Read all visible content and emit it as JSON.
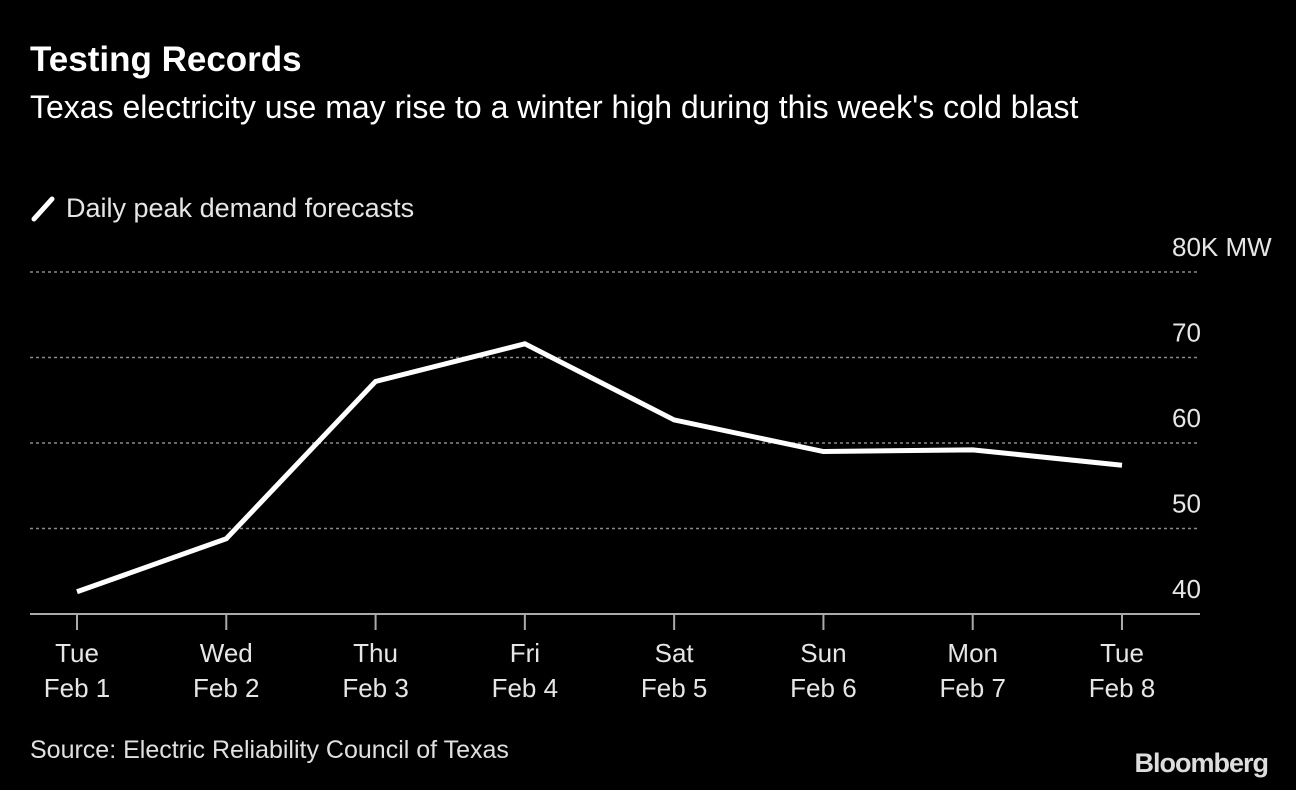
{
  "chart_data": {
    "type": "line",
    "title": "Testing Records",
    "subtitle": "Texas electricity use may rise to a winter high during this week's cold blast",
    "legend": [
      "Daily peak demand forecasts"
    ],
    "legend_placement": "top-left",
    "categories": [
      [
        "Tue",
        "Feb 1"
      ],
      [
        "Wed",
        "Feb 2"
      ],
      [
        "Thu",
        "Feb 3"
      ],
      [
        "Fri",
        "Feb 4"
      ],
      [
        "Sat",
        "Feb 5"
      ],
      [
        "Sun",
        "Feb 6"
      ],
      [
        "Mon",
        "Feb 7"
      ],
      [
        "Tue",
        "Feb 8"
      ]
    ],
    "series": [
      {
        "name": "Daily peak demand forecasts",
        "values": [
          42.6,
          48.8,
          67.2,
          71.6,
          62.7,
          59.0,
          59.2,
          57.4
        ]
      }
    ],
    "ylim": [
      40,
      80
    ],
    "yticks": [
      40,
      50,
      60,
      70,
      80
    ],
    "ytick_labels": [
      "40",
      "50",
      "60",
      "70",
      "80K MW"
    ],
    "grid": true,
    "source": "Source: Electric Reliability Council of Texas",
    "colors": {
      "line": "#ffffff",
      "grid": "#8a8a8a",
      "axis": "#aaaaaa",
      "background": "#000000"
    }
  },
  "branding": {
    "logo": "Bloomberg"
  }
}
